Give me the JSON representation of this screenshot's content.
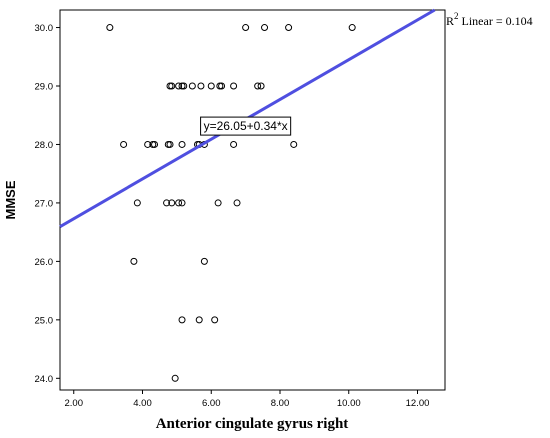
{
  "chart_data": {
    "type": "scatter",
    "xlabel": "Anterior cingulate gyrus right",
    "ylabel": "MMSE",
    "xlim": [
      1.6,
      12.8
    ],
    "ylim": [
      23.8,
      30.3
    ],
    "x_ticks": [
      "2.00",
      "4.00",
      "6.00",
      "8.00",
      "10.00",
      "12.00"
    ],
    "x_tick_values": [
      2,
      4,
      6,
      8,
      10,
      12
    ],
    "y_ticks": [
      "24.0",
      "25.0",
      "26.0",
      "27.0",
      "28.0",
      "29.0",
      "30.0"
    ],
    "y_tick_values": [
      24,
      25,
      26,
      27,
      28,
      29,
      30
    ],
    "grid": false,
    "point_color": "#000000",
    "points": [
      {
        "x": 3.05,
        "y": 30
      },
      {
        "x": 7.0,
        "y": 30
      },
      {
        "x": 7.55,
        "y": 30
      },
      {
        "x": 8.25,
        "y": 30
      },
      {
        "x": 10.1,
        "y": 30
      },
      {
        "x": 4.8,
        "y": 29
      },
      {
        "x": 4.85,
        "y": 29
      },
      {
        "x": 5.05,
        "y": 29
      },
      {
        "x": 5.15,
        "y": 29
      },
      {
        "x": 5.2,
        "y": 29
      },
      {
        "x": 5.45,
        "y": 29
      },
      {
        "x": 5.7,
        "y": 29
      },
      {
        "x": 6.0,
        "y": 29
      },
      {
        "x": 6.25,
        "y": 29
      },
      {
        "x": 6.3,
        "y": 29
      },
      {
        "x": 6.65,
        "y": 29
      },
      {
        "x": 7.35,
        "y": 29
      },
      {
        "x": 7.45,
        "y": 29
      },
      {
        "x": 3.45,
        "y": 28
      },
      {
        "x": 4.15,
        "y": 28
      },
      {
        "x": 4.3,
        "y": 28
      },
      {
        "x": 4.35,
        "y": 28
      },
      {
        "x": 4.75,
        "y": 28
      },
      {
        "x": 4.8,
        "y": 28
      },
      {
        "x": 5.15,
        "y": 28
      },
      {
        "x": 5.6,
        "y": 28
      },
      {
        "x": 5.65,
        "y": 28
      },
      {
        "x": 5.8,
        "y": 28
      },
      {
        "x": 6.65,
        "y": 28
      },
      {
        "x": 8.4,
        "y": 28
      },
      {
        "x": 3.85,
        "y": 27
      },
      {
        "x": 4.7,
        "y": 27
      },
      {
        "x": 4.85,
        "y": 27
      },
      {
        "x": 5.05,
        "y": 27
      },
      {
        "x": 5.15,
        "y": 27
      },
      {
        "x": 6.2,
        "y": 27
      },
      {
        "x": 6.75,
        "y": 27
      },
      {
        "x": 3.75,
        "y": 26
      },
      {
        "x": 5.8,
        "y": 26
      },
      {
        "x": 5.15,
        "y": 25
      },
      {
        "x": 5.65,
        "y": 25
      },
      {
        "x": 6.1,
        "y": 25
      },
      {
        "x": 4.95,
        "y": 24
      }
    ],
    "fit_line": {
      "intercept": 26.05,
      "slope": 0.34,
      "color": "#4f4fe0",
      "equation_label": "y=26.05+0.34*x",
      "equation_anchor": {
        "x": 7.0,
        "y": 28.3
      }
    },
    "r2_label": {
      "prefix": "R",
      "superscript": "2",
      "suffix": " Linear = 0.104"
    }
  }
}
